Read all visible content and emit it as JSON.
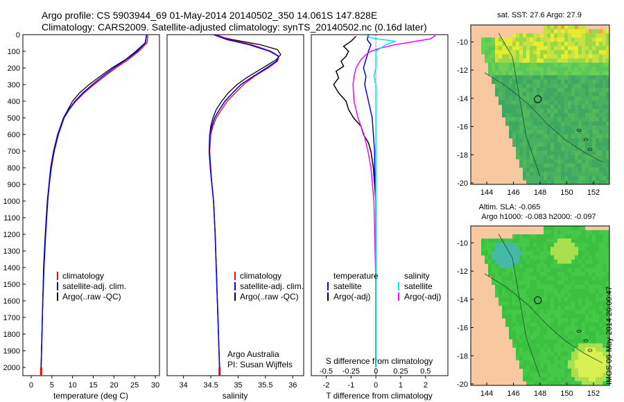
{
  "title_line1": "Argo profile: CS 5903944_69 01-May-2014 20140502_350 14.061S 147.828E",
  "title_line2": "Climatology: CARS2009. Satellite-adjusted climatology: synTS_20140502.nc (0.16d later)",
  "stamp": "IMOS 09-May-2014 20:00:47",
  "colors": {
    "clim": "#ff0000",
    "sat": "#0000ff",
    "argo": "#000000",
    "sat_s": "#00e5ee",
    "argo_s": "#ff00ff",
    "land": "#f8c8a0"
  },
  "depth_ticks": [
    "0",
    "100",
    "200",
    "300",
    "400",
    "500",
    "600",
    "700",
    "800",
    "900",
    "1000",
    "1100",
    "1200",
    "1300",
    "1400",
    "1500",
    "1600",
    "1700",
    "1800",
    "1900",
    "2000"
  ],
  "legend": {
    "climatology": "climatology",
    "satellite": "satellite-adj. clim.",
    "argo": "Argo(..raw -QC)"
  },
  "annotation": {
    "line1": "Argo Australia",
    "line2": "PI: Susan Wijffels"
  },
  "diff_legend": {
    "temperature": "temperature",
    "salinity": "salinity",
    "satellite": "satellite",
    "argo": "Argo(-adj)"
  },
  "maps": {
    "sst": {
      "title": "sat. SST: 27.6 Argo: 27.9"
    },
    "sla": {
      "title1": "Altim. SLA: -0.065",
      "title2": "Argo h1000: -0.083 h2000: -0.097"
    },
    "lon_ticks": [
      "144",
      "146",
      "148",
      "150",
      "152"
    ],
    "lat_ticks": [
      "-10",
      "-12",
      "-14",
      "-16",
      "-18",
      "-20"
    ]
  },
  "chart_data": [
    {
      "type": "line",
      "name": "temperature",
      "xlabel": "temperature (deg C)",
      "xlim": [
        -2,
        31
      ],
      "ylim": [
        2050,
        0
      ],
      "x_ticks": [
        "0",
        "5",
        "10",
        "15",
        "20",
        "25",
        "30"
      ],
      "series": [
        {
          "name": "climatology",
          "depth": [
            0,
            50,
            100,
            150,
            200,
            250,
            300,
            350,
            400,
            450,
            500,
            600,
            700,
            800,
            900,
            1000,
            1200,
            1400,
            1600,
            1800,
            2000,
            2050
          ],
          "values": [
            28.2,
            28.0,
            26.0,
            23.5,
            20.5,
            17.8,
            15.2,
            12.8,
            10.8,
            9.2,
            8.0,
            6.6,
            5.6,
            4.9,
            4.4,
            4.0,
            3.5,
            3.1,
            2.8,
            2.6,
            2.4,
            2.35
          ]
        },
        {
          "name": "satellite-adj. clim.",
          "depth": [
            0,
            50,
            100,
            150,
            200,
            250,
            300,
            350,
            400,
            450,
            500,
            600,
            700,
            800,
            900,
            1000,
            1200,
            1400,
            1600,
            1800,
            2000,
            2050
          ],
          "values": [
            27.9,
            27.6,
            25.6,
            23.0,
            20.0,
            17.3,
            14.8,
            12.5,
            10.6,
            9.1,
            7.9,
            6.5,
            5.5,
            4.8,
            4.35,
            4.0,
            3.5,
            3.1,
            2.8,
            2.6,
            2.4,
            2.35
          ]
        },
        {
          "name": "Argo(..raw -QC)",
          "depth": [
            5,
            50,
            100,
            150,
            200,
            250,
            300,
            350,
            400,
            450,
            500,
            600,
            700,
            800,
            900,
            1000,
            1200,
            1400,
            1600,
            1800,
            2000
          ],
          "values": [
            27.9,
            27.5,
            25.3,
            22.8,
            19.5,
            16.7,
            14.0,
            11.7,
            10.0,
            8.9,
            7.8,
            6.4,
            5.4,
            4.7,
            4.3,
            3.9,
            3.4,
            3.0,
            2.8,
            2.6,
            2.4
          ]
        }
      ],
      "argo_bottom_marker": {
        "value": 2.4,
        "depth_range": [
          2000,
          2050
        ]
      }
    },
    {
      "type": "line",
      "name": "salinity",
      "xlabel": "salinity",
      "xlim": [
        33.7,
        36.2
      ],
      "ylim": [
        2050,
        0
      ],
      "x_ticks": [
        "34",
        "34.5",
        "35",
        "35.5",
        "36"
      ],
      "series": [
        {
          "name": "climatology",
          "depth": [
            0,
            30,
            60,
            100,
            130,
            160,
            200,
            250,
            300,
            350,
            400,
            450,
            500,
            550,
            600,
            700,
            800,
            900,
            1000,
            1200,
            1400,
            1600,
            1800,
            2000,
            2050
          ],
          "values": [
            34.6,
            34.85,
            35.25,
            35.6,
            35.75,
            35.72,
            35.55,
            35.3,
            35.1,
            34.95,
            34.8,
            34.7,
            34.6,
            34.54,
            34.5,
            34.48,
            34.5,
            34.52,
            34.55,
            34.58,
            34.6,
            34.62,
            34.64,
            34.66,
            34.66
          ]
        },
        {
          "name": "satellite-adj. clim.",
          "depth": [
            0,
            30,
            60,
            100,
            130,
            160,
            200,
            250,
            300,
            350,
            400,
            450,
            500,
            550,
            600,
            700,
            800,
            900,
            1000,
            1200,
            1400,
            1600,
            1800,
            2000,
            2050
          ],
          "values": [
            34.55,
            34.8,
            35.2,
            35.58,
            35.74,
            35.7,
            35.52,
            35.28,
            35.05,
            34.9,
            34.76,
            34.66,
            34.57,
            34.52,
            34.48,
            34.47,
            34.49,
            34.52,
            34.55,
            34.58,
            34.6,
            34.62,
            34.64,
            34.66,
            34.66
          ]
        },
        {
          "name": "Argo(..raw -QC)",
          "depth": [
            5,
            30,
            60,
            90,
            120,
            150,
            180,
            220,
            260,
            300,
            350,
            400,
            450,
            500,
            550,
            600,
            700,
            800,
            900,
            1000,
            1200,
            1400,
            1600,
            1800,
            2000
          ],
          "values": [
            34.6,
            34.9,
            35.4,
            35.72,
            35.78,
            35.7,
            35.55,
            35.35,
            35.15,
            34.98,
            34.82,
            34.7,
            34.6,
            34.54,
            34.5,
            34.48,
            34.47,
            34.49,
            34.52,
            34.55,
            34.58,
            34.6,
            34.62,
            34.64,
            34.66
          ]
        }
      ],
      "argo_bottom_marker": {
        "value": 34.66,
        "depth_range": [
          2000,
          2050
        ]
      }
    },
    {
      "type": "line",
      "name": "difference from climatology",
      "xlabel": "T difference from climatology",
      "xlabel_top": "S difference from climatology",
      "xlim_T": [
        -2.6,
        2.9
      ],
      "xlim_S": [
        -0.65,
        0.725
      ],
      "ylim": [
        2050,
        0
      ],
      "x_ticks_T": [
        "-2",
        "-1",
        "0",
        "1",
        "2"
      ],
      "x_ticks_S": [
        "-0.5",
        "-0.25",
        "0",
        "0.25",
        "0.5"
      ],
      "series": [
        {
          "name": "temperature satellite",
          "var": "T",
          "depth": [
            0,
            30,
            60,
            100,
            150,
            200,
            250,
            300,
            400,
            500,
            600,
            700,
            800,
            900,
            1000,
            1500,
            2000
          ],
          "values": [
            -0.3,
            -0.35,
            -0.2,
            -0.3,
            -0.4,
            -0.5,
            -0.4,
            -0.45,
            -0.3,
            -0.15,
            -0.1,
            -0.05,
            -0.05,
            -0.02,
            0.0,
            0.0,
            0.0
          ]
        },
        {
          "name": "temperature Argo(-adj)",
          "var": "T",
          "depth": [
            10,
            40,
            70,
            100,
            130,
            160,
            190,
            220,
            260,
            300,
            350,
            400,
            450,
            500,
            550,
            600,
            650,
            700,
            800,
            900,
            1000,
            1500,
            2000
          ],
          "values": [
            -0.8,
            -1.0,
            -1.3,
            -1.1,
            -1.2,
            -1.4,
            -1.3,
            -1.6,
            -1.5,
            -1.7,
            -1.5,
            -1.2,
            -1.1,
            -0.9,
            -0.6,
            -0.5,
            -0.3,
            -0.2,
            -0.1,
            -0.05,
            0.0,
            0.0,
            0.0
          ]
        },
        {
          "name": "salinity satellite",
          "var": "S",
          "depth": [
            0,
            20,
            40,
            60,
            80,
            100,
            150,
            200,
            250,
            300,
            400,
            500,
            700,
            1000,
            1500,
            2000
          ],
          "values": [
            -0.1,
            -0.05,
            0.2,
            0.1,
            0.05,
            0.0,
            0.0,
            0.0,
            -0.02,
            0.0,
            0.0,
            0.0,
            0.0,
            0.0,
            0.0,
            0.0
          ]
        },
        {
          "name": "salinity Argo(-adj)",
          "var": "S",
          "depth": [
            5,
            25,
            45,
            60,
            80,
            100,
            120,
            150,
            200,
            250,
            300,
            400,
            500,
            600,
            700,
            800,
            1000,
            1500,
            2000
          ],
          "values": [
            0.6,
            0.55,
            0.35,
            0.2,
            0.05,
            -0.05,
            -0.1,
            -0.15,
            -0.2,
            -0.22,
            -0.23,
            -0.22,
            -0.18,
            -0.12,
            -0.08,
            -0.05,
            -0.02,
            0.0,
            0.0
          ]
        }
      ]
    }
  ]
}
